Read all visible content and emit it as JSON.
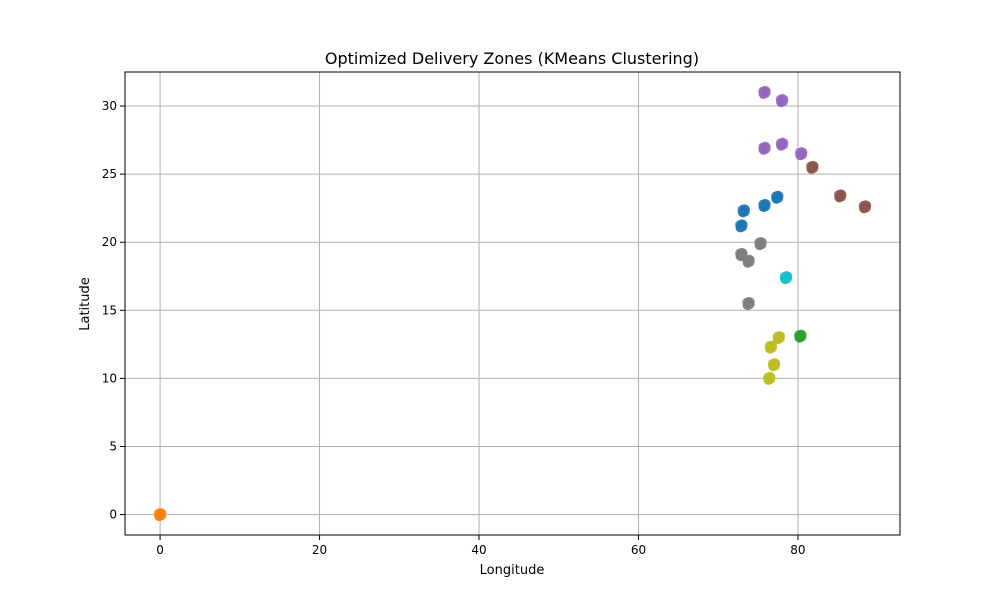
{
  "chart_data": {
    "type": "scatter",
    "title": "Optimized Delivery Zones (KMeans Clustering)",
    "xlabel": "Longitude",
    "ylabel": "Latitude",
    "xlim": [
      -4.4,
      92.8
    ],
    "ylim": [
      -1.5,
      32.5
    ],
    "xticks": [
      0,
      20,
      40,
      60,
      80
    ],
    "yticks": [
      0,
      5,
      10,
      15,
      20,
      25,
      30
    ],
    "grid": true,
    "legend": "none",
    "series": [
      {
        "color": "#1f77b4",
        "points": [
          [
            72.9,
            21.2
          ],
          [
            73.2,
            22.3
          ],
          [
            75.8,
            22.7
          ],
          [
            77.4,
            23.3
          ]
        ]
      },
      {
        "color": "#ff7f0e",
        "points": [
          [
            0.0,
            0.0
          ]
        ]
      },
      {
        "color": "#2ca02c",
        "points": [
          [
            80.3,
            13.1
          ]
        ]
      },
      {
        "color": "#8c564b",
        "points": [
          [
            81.8,
            25.5
          ],
          [
            85.3,
            23.4
          ],
          [
            88.4,
            22.6
          ]
        ]
      },
      {
        "color": "#9467bd",
        "points": [
          [
            75.8,
            31.0
          ],
          [
            78.0,
            30.4
          ],
          [
            75.8,
            26.9
          ],
          [
            78.0,
            27.2
          ],
          [
            80.4,
            26.5
          ]
        ]
      },
      {
        "color": "#7f7f7f",
        "points": [
          [
            75.3,
            19.9
          ],
          [
            72.9,
            19.1
          ],
          [
            73.8,
            18.6
          ],
          [
            73.8,
            15.5
          ]
        ]
      },
      {
        "color": "#17becf",
        "points": [
          [
            78.5,
            17.4
          ]
        ]
      },
      {
        "color": "#bcbd22",
        "points": [
          [
            77.6,
            13.0
          ],
          [
            76.6,
            12.3
          ],
          [
            77.0,
            11.0
          ],
          [
            76.4,
            10.0
          ]
        ]
      }
    ]
  }
}
